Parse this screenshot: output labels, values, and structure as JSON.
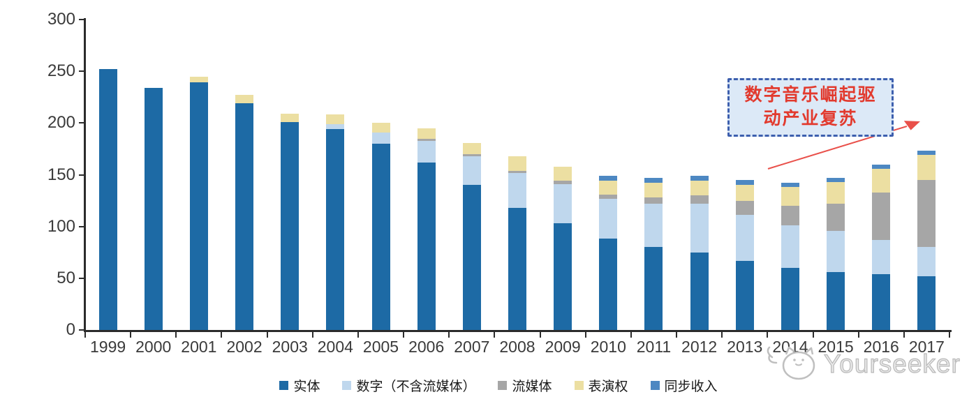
{
  "chart_data": {
    "type": "bar",
    "stacked": true,
    "title": "",
    "xlabel": "",
    "ylabel": "",
    "categories": [
      "1999",
      "2000",
      "2001",
      "2002",
      "2003",
      "2004",
      "2005",
      "2006",
      "2007",
      "2008",
      "2009",
      "2010",
      "2011",
      "2012",
      "2013",
      "2014",
      "2015",
      "2016",
      "2017"
    ],
    "series": [
      {
        "name": "实体",
        "color": "#1d6aa5",
        "values": [
          252,
          234,
          239,
          219,
          201,
          194,
          180,
          162,
          140,
          118,
          103,
          88,
          80,
          75,
          67,
          60,
          56,
          54,
          52
        ]
      },
      {
        "name": "数字（不含流媒体）",
        "color": "#bfd7ed",
        "values": [
          0,
          0,
          0,
          0,
          0,
          5,
          11,
          21,
          28,
          34,
          38,
          39,
          42,
          47,
          44,
          41,
          40,
          33,
          28
        ]
      },
      {
        "name": "流媒体",
        "color": "#a6a6a6",
        "values": [
          0,
          0,
          0,
          0,
          0,
          0,
          0,
          2,
          2,
          2,
          3,
          4,
          6,
          8,
          14,
          19,
          26,
          46,
          65
        ]
      },
      {
        "name": "表演权",
        "color": "#ecdfa2",
        "values": [
          0,
          0,
          6,
          8,
          8,
          9,
          9,
          10,
          11,
          14,
          14,
          13,
          14,
          14,
          15,
          18,
          21,
          23,
          24
        ]
      },
      {
        "name": "同步收入",
        "color": "#4d88c2",
        "values": [
          0,
          0,
          0,
          0,
          0,
          0,
          0,
          0,
          0,
          0,
          0,
          5,
          5,
          5,
          5,
          4,
          4,
          4,
          4
        ]
      }
    ],
    "ylim": [
      0,
      300
    ],
    "yticks": [
      0,
      50,
      100,
      150,
      200,
      250,
      300
    ],
    "grid": false,
    "legend_position": "bottom"
  },
  "annotation": {
    "line1": "数字音乐崛起驱",
    "line2": "动产业复苏",
    "text_color": "#e23a2e",
    "box_fill": "#dce9f7",
    "box_border": "#3d5fae",
    "arrow_color": "#e9504a"
  },
  "watermark": {
    "text": "Yourseeker"
  }
}
